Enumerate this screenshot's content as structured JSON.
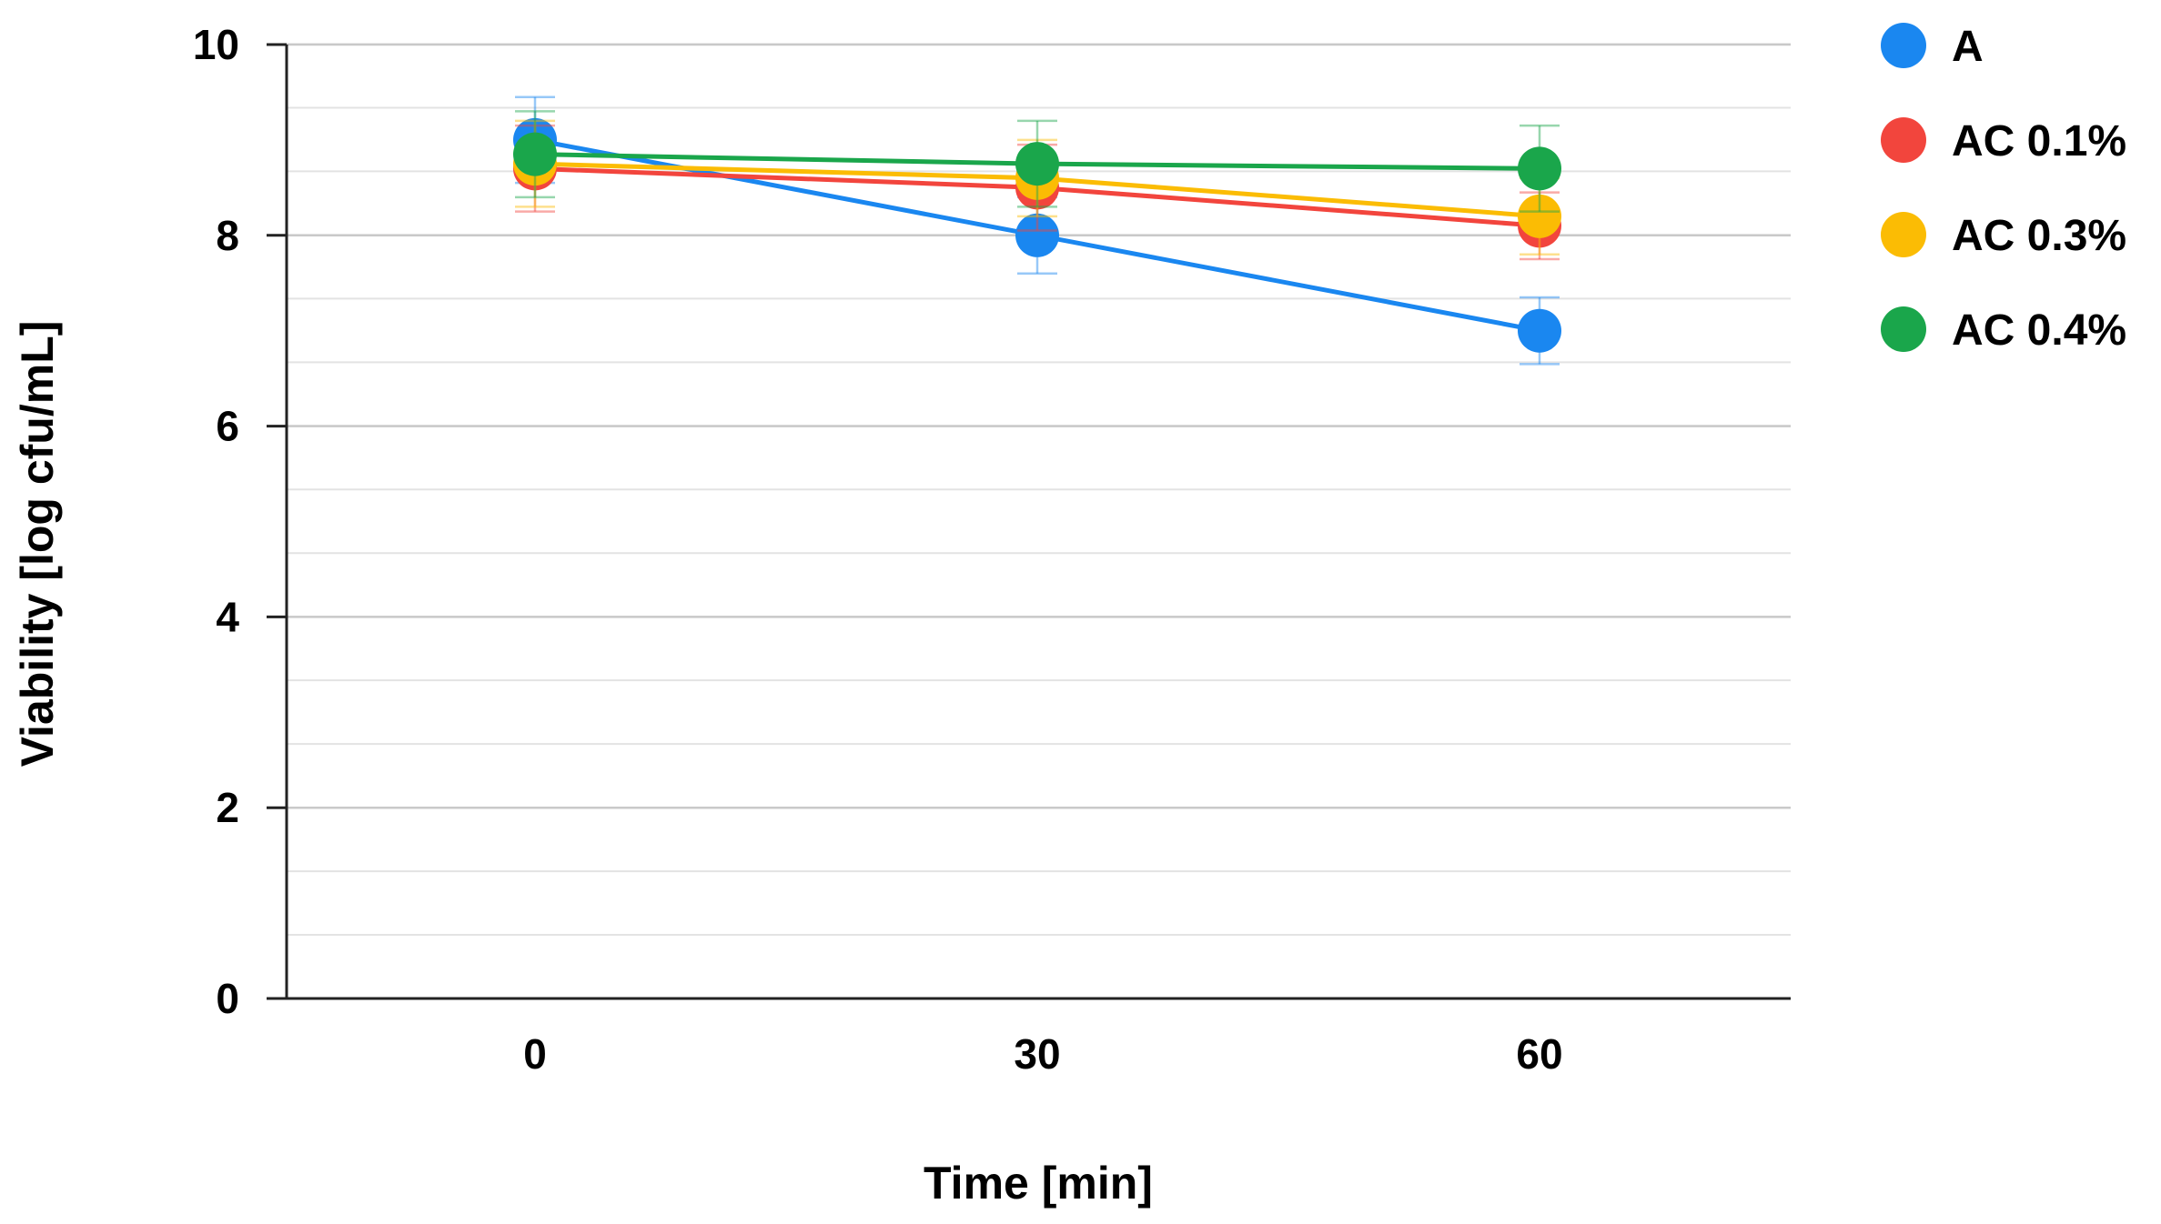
{
  "chart_data": {
    "type": "line",
    "title": "",
    "xlabel": "Time [min]",
    "ylabel": "Viability [log cfu/mL]",
    "categories": [
      "0",
      "30",
      "60"
    ],
    "x": [
      0,
      30,
      60
    ],
    "ylim": [
      0,
      10
    ],
    "yticks": [
      0,
      2,
      4,
      6,
      8,
      10
    ],
    "y_tick_labels": [
      "0",
      "2",
      "4",
      "6",
      "8",
      "10"
    ],
    "minor_gridline_step": 0.667,
    "grid": true,
    "legend_position": "top-right",
    "series": [
      {
        "name": "A",
        "color": "#1a87f0",
        "values": [
          9.0,
          8.0,
          7.0
        ],
        "errors": [
          0.45,
          0.4,
          0.35
        ]
      },
      {
        "name": "AC 0.1%",
        "color": "#f2453d",
        "values": [
          8.7,
          8.5,
          8.1
        ],
        "errors": [
          0.45,
          0.45,
          0.35
        ]
      },
      {
        "name": "AC 0.3%",
        "color": "#fbbc04",
        "values": [
          8.75,
          8.6,
          8.2
        ],
        "errors": [
          0.45,
          0.4,
          0.4
        ]
      },
      {
        "name": "AC 0.4%",
        "color": "#1aa64b",
        "values": [
          8.85,
          8.75,
          8.7
        ],
        "errors": [
          0.45,
          0.45,
          0.45
        ]
      }
    ]
  }
}
